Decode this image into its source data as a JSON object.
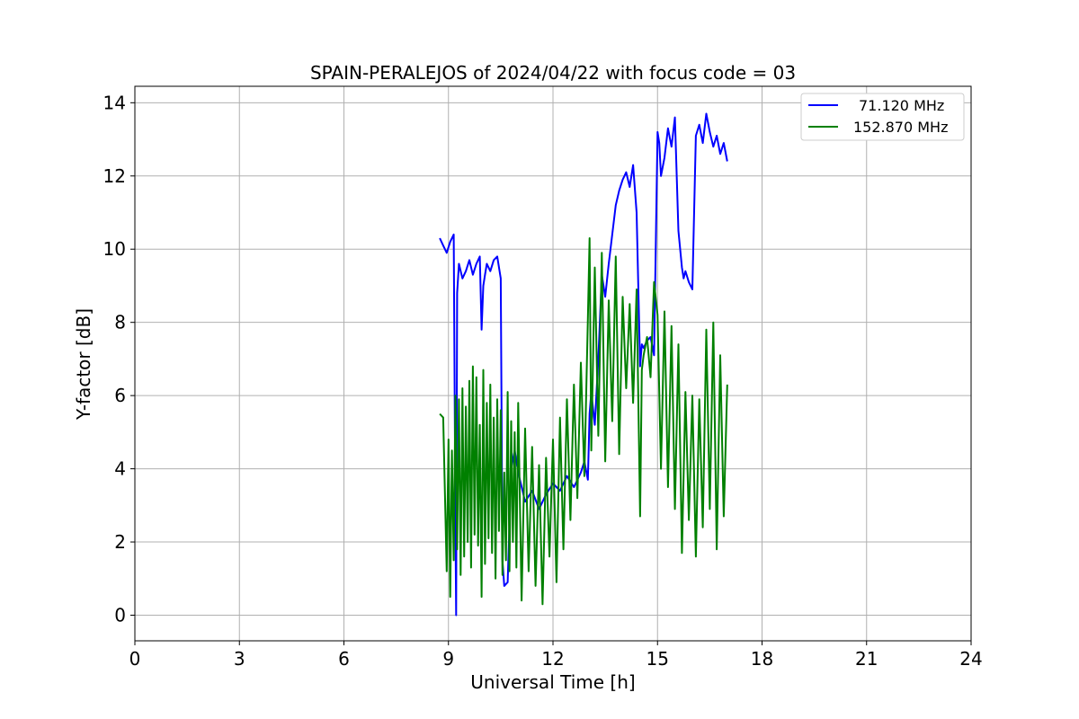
{
  "chart_data": {
    "type": "line",
    "title": "SPAIN-PERALEJOS of 2024/04/22 with focus code = 03",
    "xlabel": "Universal Time [h]",
    "ylabel": "Y-factor [dB]",
    "xlim": [
      0,
      24
    ],
    "ylim": [
      -0.7,
      14.45
    ],
    "xticks": [
      0,
      3,
      6,
      9,
      12,
      15,
      18,
      21,
      24
    ],
    "yticks": [
      0,
      2,
      4,
      6,
      8,
      10,
      12,
      14
    ],
    "grid": true,
    "legend_position": "top-right",
    "series": [
      {
        "name": "71.120 MHz",
        "color": "#0000ff",
        "x": [
          8.75,
          8.85,
          8.95,
          9.05,
          9.15,
          9.2,
          9.22,
          9.25,
          9.3,
          9.4,
          9.5,
          9.6,
          9.7,
          9.8,
          9.9,
          9.95,
          10.0,
          10.05,
          10.1,
          10.2,
          10.3,
          10.4,
          10.5,
          10.55,
          10.6,
          10.7,
          10.8,
          10.9,
          11.0,
          11.2,
          11.4,
          11.6,
          11.8,
          12.0,
          12.2,
          12.4,
          12.6,
          12.8,
          12.9,
          13.0,
          13.05,
          13.1,
          13.2,
          13.3,
          13.4,
          13.5,
          13.6,
          13.7,
          13.8,
          13.9,
          14.0,
          14.1,
          14.2,
          14.3,
          14.4,
          14.5,
          14.55,
          14.6,
          14.7,
          14.8,
          14.9,
          15.0,
          15.05,
          15.1,
          15.2,
          15.3,
          15.4,
          15.5,
          15.6,
          15.7,
          15.75,
          15.8,
          15.9,
          16.0,
          16.1,
          16.2,
          16.3,
          16.4,
          16.5,
          16.6,
          16.7,
          16.8,
          16.9,
          17.0
        ],
        "y": [
          10.3,
          10.1,
          9.9,
          10.2,
          10.4,
          2.5,
          0.0,
          8.8,
          9.6,
          9.2,
          9.4,
          9.7,
          9.3,
          9.6,
          9.8,
          7.8,
          9.0,
          9.3,
          9.6,
          9.4,
          9.7,
          9.8,
          9.2,
          1.5,
          0.8,
          0.9,
          4.0,
          4.5,
          3.9,
          3.1,
          3.4,
          2.9,
          3.3,
          3.6,
          3.4,
          3.8,
          3.5,
          3.9,
          4.2,
          3.7,
          5.5,
          6.1,
          5.2,
          7.0,
          9.3,
          8.7,
          9.6,
          10.4,
          11.2,
          11.6,
          11.9,
          12.1,
          11.7,
          12.3,
          11.0,
          6.8,
          7.4,
          7.3,
          7.5,
          7.6,
          7.1,
          13.2,
          12.9,
          12.0,
          12.5,
          13.3,
          12.8,
          13.6,
          10.5,
          9.5,
          9.2,
          9.4,
          9.1,
          8.9,
          13.1,
          13.4,
          12.9,
          13.7,
          13.2,
          12.8,
          13.1,
          12.6,
          12.9,
          12.4
        ]
      },
      {
        "name": "152.870 MHz",
        "color": "#008000",
        "x": [
          8.75,
          8.85,
          8.95,
          9.0,
          9.05,
          9.1,
          9.15,
          9.2,
          9.25,
          9.3,
          9.35,
          9.4,
          9.45,
          9.5,
          9.55,
          9.6,
          9.65,
          9.7,
          9.75,
          9.8,
          9.85,
          9.9,
          9.95,
          10.0,
          10.05,
          10.1,
          10.15,
          10.2,
          10.25,
          10.3,
          10.35,
          10.4,
          10.45,
          10.5,
          10.55,
          10.6,
          10.65,
          10.7,
          10.75,
          10.8,
          10.85,
          10.9,
          10.95,
          11.0,
          11.1,
          11.2,
          11.3,
          11.4,
          11.5,
          11.6,
          11.7,
          11.8,
          11.9,
          12.0,
          12.1,
          12.2,
          12.3,
          12.4,
          12.5,
          12.6,
          12.7,
          12.8,
          12.9,
          13.0,
          13.05,
          13.1,
          13.2,
          13.3,
          13.4,
          13.5,
          13.6,
          13.7,
          13.8,
          13.9,
          14.0,
          14.1,
          14.2,
          14.3,
          14.4,
          14.5,
          14.55,
          14.6,
          14.7,
          14.8,
          14.9,
          15.0,
          15.1,
          15.2,
          15.3,
          15.4,
          15.5,
          15.6,
          15.7,
          15.8,
          15.9,
          16.0,
          16.1,
          16.2,
          16.3,
          16.4,
          16.5,
          16.6,
          16.7,
          16.8,
          16.9,
          17.0
        ],
        "y": [
          5.5,
          5.4,
          1.2,
          4.8,
          0.5,
          4.5,
          1.5,
          6.0,
          1.8,
          5.9,
          1.1,
          6.2,
          1.6,
          5.7,
          2.0,
          6.4,
          1.3,
          6.8,
          2.2,
          6.5,
          1.9,
          5.2,
          0.5,
          6.7,
          1.4,
          5.8,
          2.1,
          6.3,
          1.7,
          5.4,
          1.0,
          5.9,
          2.3,
          5.6,
          1.1,
          3.9,
          1.5,
          6.1,
          1.2,
          5.3,
          2.0,
          5.0,
          1.3,
          5.8,
          0.4,
          5.1,
          1.2,
          4.6,
          0.8,
          4.1,
          0.3,
          4.3,
          1.6,
          4.8,
          0.9,
          5.4,
          1.8,
          5.9,
          2.6,
          6.3,
          3.2,
          6.9,
          3.8,
          8.1,
          10.3,
          4.5,
          9.5,
          4.9,
          9.9,
          4.2,
          8.6,
          5.3,
          9.8,
          4.4,
          8.7,
          6.2,
          8.5,
          5.8,
          8.9,
          2.7,
          6.7,
          7.1,
          7.6,
          6.5,
          9.1,
          8.2,
          4.0,
          8.3,
          3.5,
          7.9,
          2.9,
          7.4,
          1.7,
          6.1,
          2.6,
          6.0,
          1.6,
          5.9,
          2.4,
          7.8,
          2.9,
          8.0,
          1.8,
          7.1,
          2.7,
          6.3
        ]
      }
    ]
  }
}
